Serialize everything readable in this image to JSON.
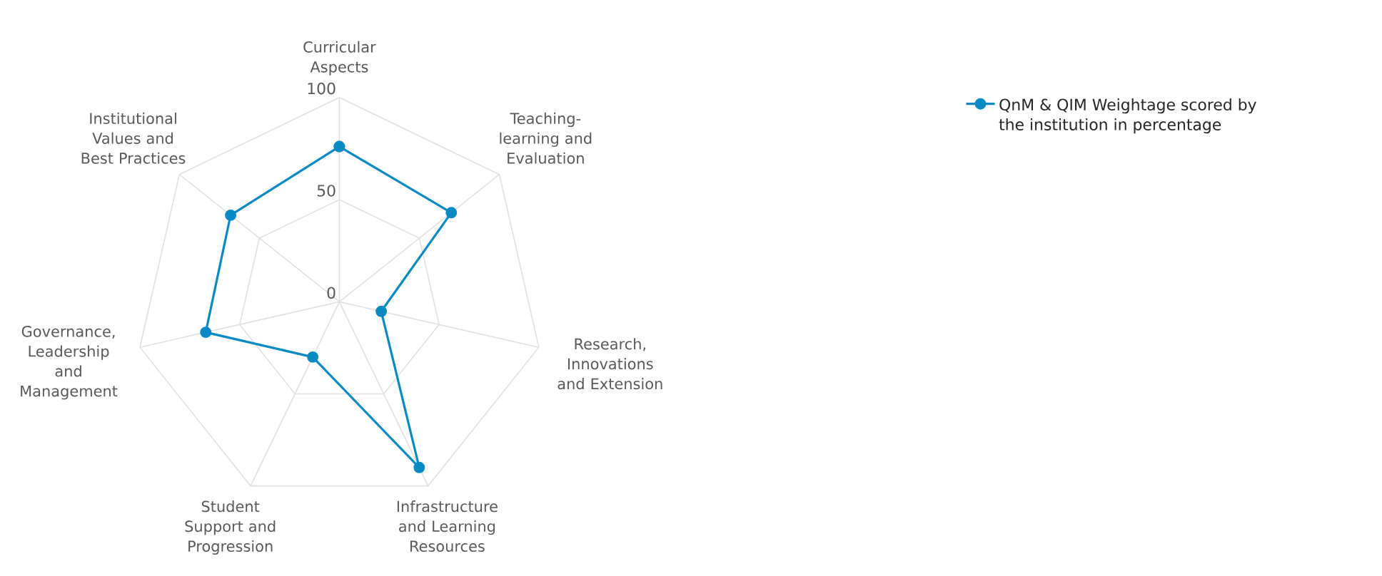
{
  "chart_data": {
    "type": "radar",
    "categories": [
      "Curricular Aspects",
      "Teaching-learning and Evaluation",
      "Research, Innovations and Extension",
      "Infrastructure and Learning Resources",
      "Student Support and Progression",
      "Governance, Leadership and Management",
      "Institutional Values and Best Practices"
    ],
    "series": [
      {
        "name": "QnM & QIM Weightage scored by the institution in percentage",
        "color": "#0a8ac4",
        "values": [
          76,
          70,
          21,
          90,
          30,
          67,
          68
        ]
      }
    ],
    "ylim": [
      0,
      100
    ],
    "yticks": [
      0,
      50,
      100
    ],
    "grid": true,
    "legend": "top right",
    "marker": "circle",
    "line_style": "solid"
  }
}
